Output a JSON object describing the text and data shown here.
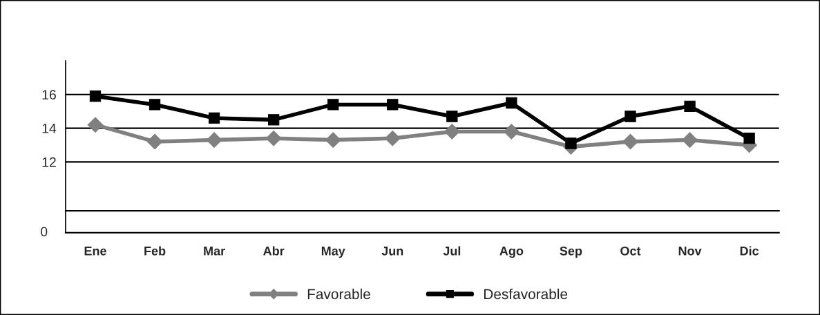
{
  "chart_data": {
    "type": "line",
    "categories": [
      "Ene",
      "Feb",
      "Mar",
      "Abr",
      "May",
      "Jun",
      "Jul",
      "Ago",
      "Sep",
      "Oct",
      "Nov",
      "Dic"
    ],
    "ylim": [
      9.1,
      18
    ],
    "yticks": [
      12,
      14,
      16
    ],
    "grid": "y",
    "legend": "bottom",
    "annotations": [
      "0"
    ],
    "series": [
      {
        "name": "Favorable",
        "color": "#808080",
        "marker": "diamond",
        "values": [
          14.2,
          13.2,
          13.3,
          13.4,
          13.3,
          13.4,
          13.8,
          13.8,
          12.9,
          13.2,
          13.3,
          13.0
        ]
      },
      {
        "name": "Desfavorable",
        "color": "#000000",
        "marker": "square",
        "values": [
          15.9,
          15.4,
          14.6,
          14.5,
          15.4,
          15.4,
          14.7,
          15.5,
          13.1,
          14.7,
          15.3,
          13.4
        ]
      }
    ]
  }
}
